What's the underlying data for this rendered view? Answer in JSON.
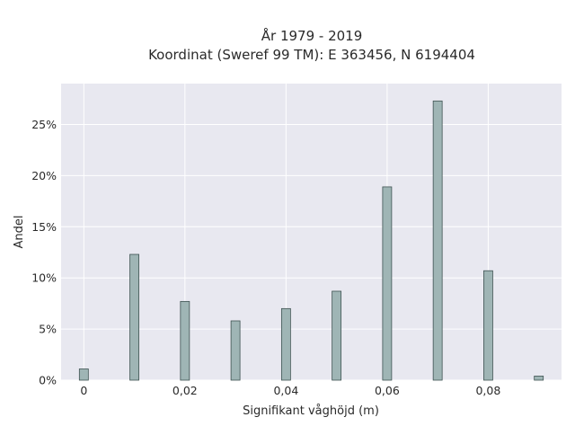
{
  "chart_data": {
    "type": "bar",
    "title_line1": "År 1979 - 2019",
    "title_line2": "Koordinat (Sweref 99 TM): E 363456, N 6194404",
    "xlabel": "Signifikant våghöjd (m)",
    "ylabel": "Andel",
    "x": [
      0,
      0.01,
      0.02,
      0.03,
      0.04,
      0.05,
      0.06,
      0.07,
      0.08,
      0.09
    ],
    "values": [
      1.1,
      12.3,
      7.7,
      5.8,
      7.0,
      8.7,
      18.9,
      27.3,
      10.7,
      0.4
    ],
    "xlim": [
      -0.0045,
      0.0945
    ],
    "ylim": [
      0,
      29
    ],
    "x_ticks": [
      0,
      0.02,
      0.04,
      0.06,
      0.08
    ],
    "x_tick_labels": [
      "0",
      "0,02",
      "0,04",
      "0,06",
      "0,08"
    ],
    "y_ticks": [
      0,
      5,
      10,
      15,
      20,
      25
    ],
    "y_tick_labels": [
      "0%",
      "5%",
      "10%",
      "15%",
      "20%",
      "25%"
    ],
    "bar_color": "#9fb5b5",
    "bar_edge_color": "#3f5352",
    "plot_background": "#e8e8f0",
    "grid": true,
    "grid_color": "#ffffff"
  }
}
